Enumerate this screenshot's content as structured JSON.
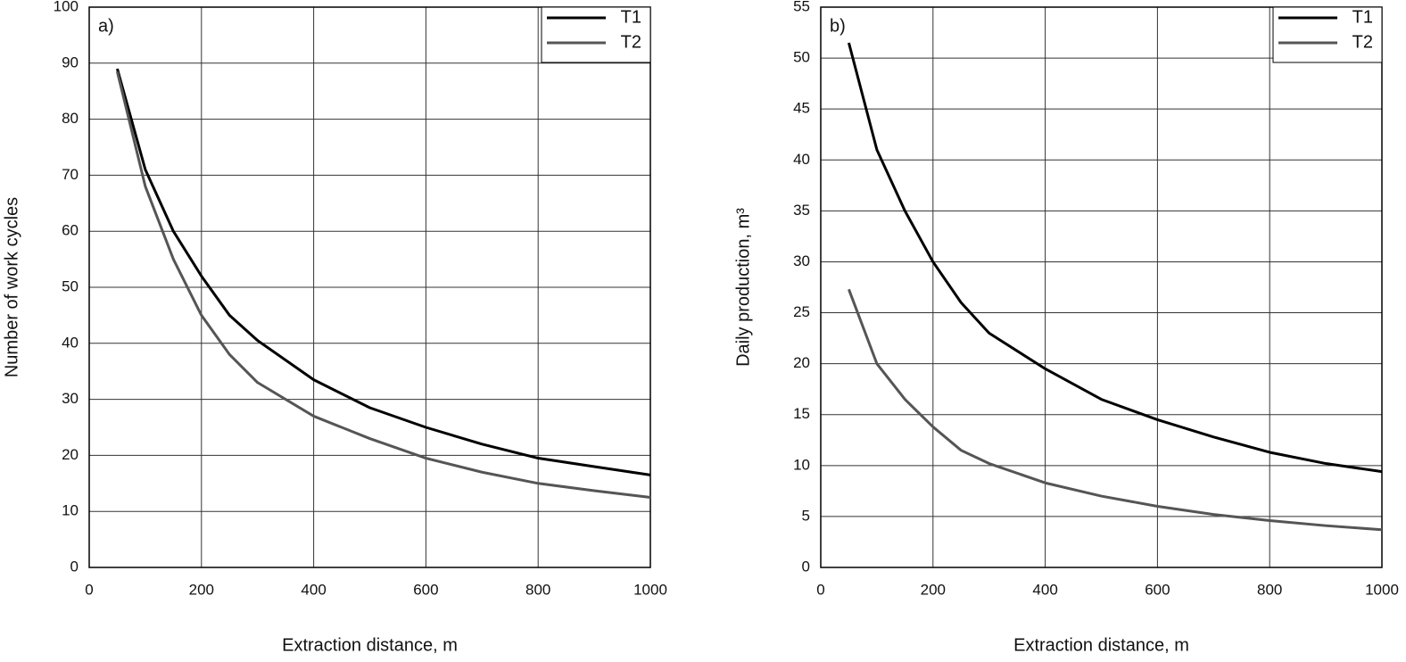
{
  "chart_data": [
    {
      "type": "line",
      "panel_label": "a)",
      "xlabel": "Extraction distance, m",
      "ylabel": "Number of work cycles",
      "x": [
        50,
        100,
        150,
        200,
        250,
        300,
        400,
        500,
        600,
        700,
        800,
        900,
        1000
      ],
      "series": [
        {
          "name": "T1",
          "color": "#000000",
          "values": [
            89,
            71,
            60,
            52,
            45,
            40.5,
            33.5,
            28.5,
            25,
            22,
            19.5,
            18,
            16.5
          ]
        },
        {
          "name": "T2",
          "color": "#555555",
          "values": [
            88.5,
            68,
            55,
            45,
            38,
            33,
            27,
            23,
            19.5,
            17,
            15,
            13.7,
            12.5
          ]
        }
      ],
      "xlim": [
        0,
        1000
      ],
      "ylim": [
        0,
        100
      ],
      "xticks": [
        0,
        200,
        400,
        600,
        800,
        1000
      ],
      "yticks": [
        0,
        10,
        20,
        30,
        40,
        50,
        60,
        70,
        80,
        90,
        100
      ],
      "grid": true,
      "legend": "upper right"
    },
    {
      "type": "line",
      "panel_label": "b)",
      "xlabel": "Extraction distance, m",
      "ylabel": "Daily production, m³",
      "x": [
        50,
        100,
        150,
        200,
        250,
        300,
        400,
        500,
        600,
        700,
        800,
        900,
        1000
      ],
      "series": [
        {
          "name": "T1",
          "color": "#000000",
          "values": [
            51.5,
            41,
            35,
            30,
            26,
            23,
            19.5,
            16.5,
            14.5,
            12.8,
            11.3,
            10.2,
            9.4
          ]
        },
        {
          "name": "T2",
          "color": "#555555",
          "values": [
            27.3,
            20,
            16.5,
            13.8,
            11.5,
            10.2,
            8.3,
            7,
            6,
            5.2,
            4.6,
            4.1,
            3.7
          ]
        }
      ],
      "xlim": [
        0,
        1000
      ],
      "ylim": [
        0,
        55
      ],
      "xticks": [
        0,
        200,
        400,
        600,
        800,
        1000
      ],
      "yticks": [
        0,
        5,
        10,
        15,
        20,
        25,
        30,
        35,
        40,
        45,
        50,
        55
      ],
      "grid": true,
      "legend": "upper right"
    }
  ]
}
